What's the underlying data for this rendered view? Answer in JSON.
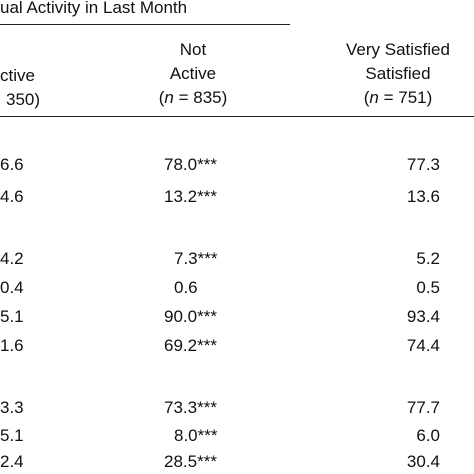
{
  "header": {
    "group_title": "ual Activity in Last Month",
    "col1": {
      "line1": "ctive",
      "line2": "350)"
    },
    "col2": {
      "line1": "Not",
      "line2": "Active",
      "n_label": "n",
      "n_value": "= 835)",
      "n_open": "("
    },
    "col3": {
      "line1": "Very Satisfied",
      "line2": "Satisfied",
      "n_label": "n",
      "n_value": "= 751)",
      "n_open": "("
    }
  },
  "rows": [
    {
      "col1": "6.6",
      "col2": "78.0***",
      "col3": "77.3"
    },
    {
      "col1": "4.6",
      "col2": "13.2***",
      "col3": "13.6"
    },
    {
      "col1": "4.2",
      "col2": "7.3***",
      "col3": "5.2"
    },
    {
      "col1": "0.4",
      "col2": "0.6",
      "col3": "0.5"
    },
    {
      "col1": "5.1",
      "col2": "90.0***",
      "col3": "93.4"
    },
    {
      "col1": "1.6",
      "col2": "69.2***",
      "col3": "74.4"
    },
    {
      "col1": "3.3",
      "col2": "73.3***",
      "col3": "77.7"
    },
    {
      "col1": "5.1",
      "col2": "8.0***",
      "col3": "6.0"
    },
    {
      "col1": "2.4",
      "col2": "28.5***",
      "col3": "30.4"
    }
  ]
}
